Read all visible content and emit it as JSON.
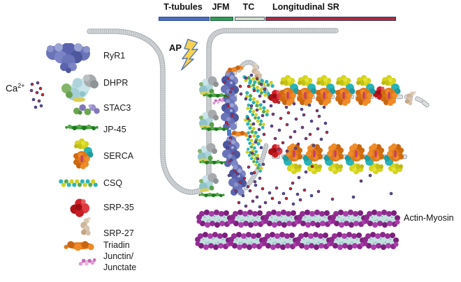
{
  "header_bars": {
    "items": [
      {
        "label": "T-tubules",
        "fill": "#4a6fbd",
        "border": "#2c4d94"
      },
      {
        "label": "JFM",
        "fill": "#2f9e57",
        "border": "#1a5c34"
      },
      {
        "label": "TC",
        "fill": "#d5e0c9",
        "border": "#49596a"
      },
      {
        "label": "Longitudinal SR",
        "fill": "#b22a38",
        "border": "#2c3a6b"
      }
    ]
  },
  "annotations": {
    "action_potential": "AP",
    "actin_myosin": "Actin-Myosin",
    "calcium_base": "Ca",
    "calcium_sup": "2+"
  },
  "legend": {
    "items": [
      {
        "label": "RyR1",
        "icon": "ryr1-structure-icon"
      },
      {
        "label": "DHPR",
        "icon": "dhpr-structure-icon"
      },
      {
        "label": "STAC3",
        "icon": "stac3-structure-icon"
      },
      {
        "label": "JP-45",
        "icon": "jp45-structure-icon"
      },
      {
        "label": "SERCA",
        "icon": "serca-structure-icon"
      },
      {
        "label": "CSQ",
        "icon": "csq-structure-icon"
      },
      {
        "label": "SRP-35",
        "icon": "srp35-structure-icon"
      },
      {
        "label": "SRP-27",
        "icon": "srp27-structure-icon"
      },
      {
        "label": "Triadin",
        "icon": "triadin-structure-icon"
      },
      {
        "label": "Junctin/",
        "label2": "Junctate",
        "icon": "junctin-junctate-structure-icon"
      }
    ]
  },
  "colors": {
    "calcium_dot_core": "#d22b2b",
    "calcium_dot_ring": "#2e3f8f",
    "membrane_fill": "#d4d7d9",
    "membrane_edge": "#9aa0a6",
    "ryr1": "#5a64ae",
    "dhpr": "#aed4db",
    "stac3_green": "#6aa84f",
    "stac3_purple": "#8078b8",
    "jp45": "#2f8f2f",
    "serca_orange": "#e17817",
    "serca_yellow": "#d6d41c",
    "serca_teal": "#28b4b8",
    "csq_teal": "#28b4b8",
    "csq_yellow": "#cfd01f",
    "srp35": "#d42028",
    "srp27": "#cdb49a",
    "triadin": "#e17817",
    "junctin": "#c668b8",
    "actin_purple": "#962d96",
    "actin_core": "#c2e0de",
    "bolt_fill": "#f7d354",
    "bolt_edge": "#5577aa"
  }
}
